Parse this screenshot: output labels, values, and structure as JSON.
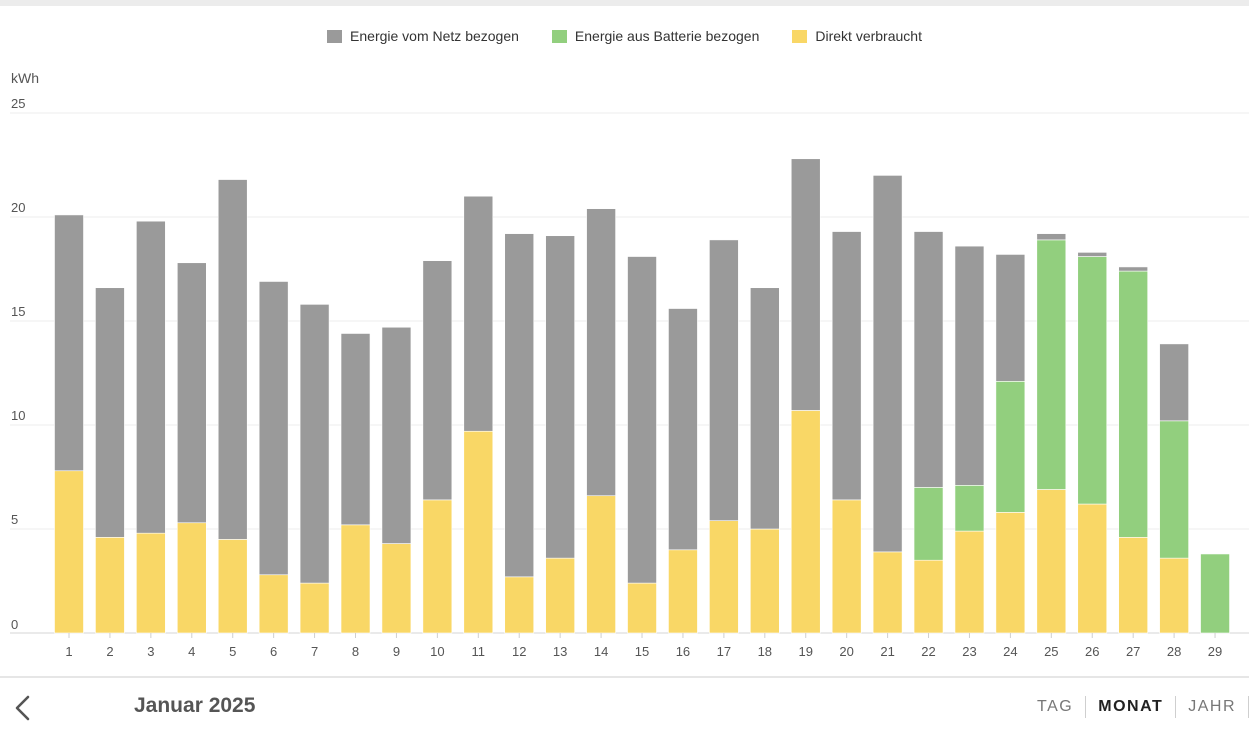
{
  "colors": {
    "grid": "#9a9a9a",
    "battery": "#92cf7e",
    "direct": "#f9d766"
  },
  "legend": [
    {
      "label": "Energie vom Netz bezogen",
      "color": "#9a9a9a"
    },
    {
      "label": "Energie aus Batterie bezogen",
      "color": "#92cf7e"
    },
    {
      "label": "Direkt verbraucht",
      "color": "#f9d766"
    }
  ],
  "chart_data": {
    "type": "bar",
    "stacked": true,
    "ylabel": "kWh",
    "ylim": [
      0,
      25
    ],
    "yticks": [
      0,
      5,
      10,
      15,
      20,
      25
    ],
    "categories": [
      "1",
      "2",
      "3",
      "4",
      "5",
      "6",
      "7",
      "8",
      "9",
      "10",
      "11",
      "12",
      "13",
      "14",
      "15",
      "16",
      "17",
      "18",
      "19",
      "20",
      "21",
      "22",
      "23",
      "24",
      "25",
      "26",
      "27",
      "28",
      "29"
    ],
    "series": [
      {
        "name": "Direkt verbraucht",
        "color": "#f9d766",
        "values": [
          7.8,
          4.6,
          4.8,
          5.3,
          4.5,
          2.8,
          2.4,
          5.2,
          4.3,
          6.4,
          9.7,
          2.7,
          3.6,
          6.6,
          2.4,
          4.0,
          5.4,
          5.0,
          10.7,
          6.4,
          3.9,
          3.5,
          4.9,
          5.8,
          6.9,
          6.2,
          4.6,
          3.6,
          0
        ]
      },
      {
        "name": "Energie aus Batterie bezogen",
        "color": "#92cf7e",
        "values": [
          0,
          0,
          0,
          0,
          0,
          0,
          0,
          0,
          0,
          0,
          0,
          0,
          0,
          0,
          0,
          0,
          0,
          0,
          0,
          0,
          0,
          3.5,
          2.2,
          6.3,
          12.0,
          11.9,
          12.8,
          6.6,
          3.8
        ]
      },
      {
        "name": "Energie vom Netz bezogen",
        "color": "#9a9a9a",
        "values": [
          12.3,
          12.0,
          15.0,
          12.5,
          17.3,
          14.1,
          13.4,
          9.2,
          10.4,
          11.5,
          11.3,
          16.5,
          15.5,
          13.8,
          15.7,
          11.6,
          13.5,
          11.6,
          12.1,
          12.9,
          18.1,
          12.3,
          11.5,
          6.1,
          0.3,
          0.2,
          0.2,
          3.7,
          0
        ]
      }
    ],
    "legend_position": "top-center",
    "grid": true
  },
  "footer": {
    "period": "Januar 2025",
    "tabs": [
      {
        "label": "TAG",
        "active": false
      },
      {
        "label": "MONAT",
        "active": true
      },
      {
        "label": "JAHR",
        "active": false
      }
    ]
  }
}
